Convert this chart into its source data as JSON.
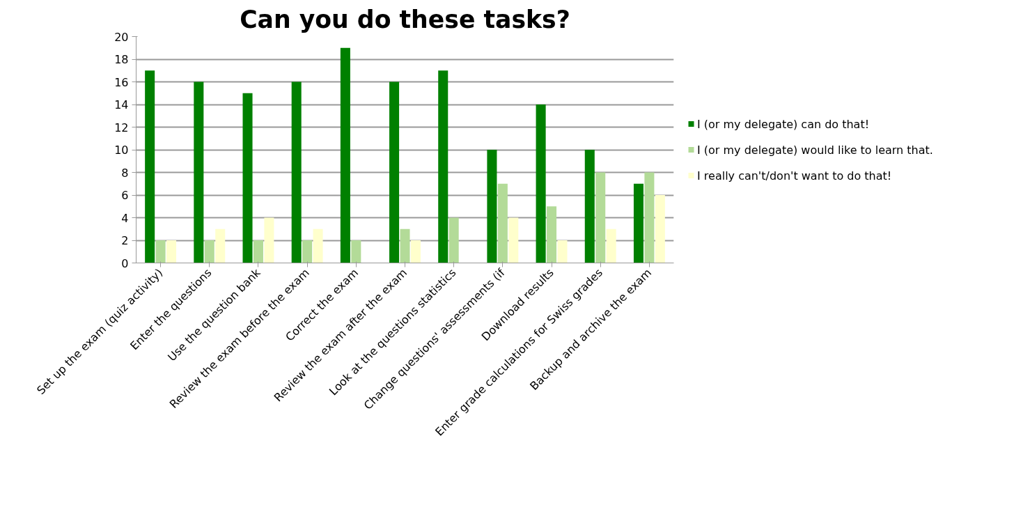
{
  "chart_data": {
    "type": "bar",
    "title": "Can you do these tasks?",
    "categories": [
      "Set up the exam (quiz activity)",
      "Enter the questions",
      "Use the question bank",
      "Review the exam before the exam",
      "Correct the exam",
      "Review the exam after the exam",
      "Look at the questions statistics",
      "Change questions' assessments (if",
      "Download results",
      "Enter grade calculations for Swiss grades",
      "Backup and archive the exam"
    ],
    "series": [
      {
        "name": "I (or my delegate) can do that!",
        "color": "#008000",
        "values": [
          17,
          16,
          15,
          16,
          19,
          16,
          17,
          10,
          14,
          10,
          7
        ]
      },
      {
        "name": "I (or my delegate) would like to learn that.",
        "color": "#b3db98",
        "values": [
          2,
          2,
          2,
          2,
          2,
          3,
          4,
          7,
          5,
          8,
          8
        ]
      },
      {
        "name": "I really can't/don't want to do that!",
        "color": "#ffffcc",
        "values": [
          2,
          3,
          4,
          3,
          0,
          2,
          0,
          4,
          2,
          3,
          6
        ]
      }
    ],
    "ylim": [
      0,
      20
    ],
    "yticks": [
      0,
      2,
      4,
      6,
      8,
      10,
      12,
      14,
      16,
      18,
      20
    ],
    "grid": "y",
    "legend": "right"
  }
}
